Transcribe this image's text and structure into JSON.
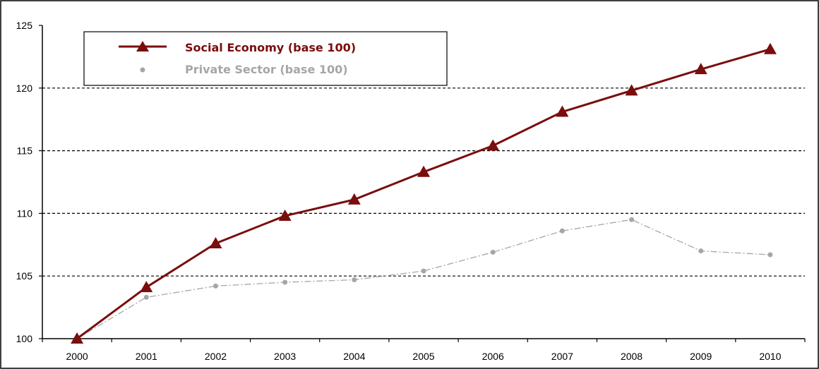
{
  "chart_data": {
    "type": "line",
    "categories": [
      "2000",
      "2001",
      "2002",
      "2003",
      "2004",
      "2005",
      "2006",
      "2007",
      "2008",
      "2009",
      "2010"
    ],
    "series": [
      {
        "name": "Social Economy (base 100)",
        "color": "#7a0d0d",
        "marker": "triangle",
        "line": "solid",
        "values": [
          100,
          104.1,
          107.6,
          109.8,
          111.1,
          113.3,
          115.4,
          118.1,
          119.8,
          121.5,
          123.1
        ]
      },
      {
        "name": "Private Sector (base 100)",
        "color": "#a6a6a6",
        "marker": "circle",
        "line": "dash-dot",
        "values": [
          100,
          103.3,
          104.2,
          104.5,
          104.7,
          105.4,
          106.9,
          108.6,
          109.5,
          107.0,
          106.7
        ]
      }
    ],
    "ylim": [
      100,
      125
    ],
    "yticks": [
      100,
      105,
      110,
      115,
      120,
      125
    ],
    "grid": "horizontal-dashed",
    "legend_position": "top-left",
    "title": "",
    "xlabel": "",
    "ylabel": ""
  }
}
